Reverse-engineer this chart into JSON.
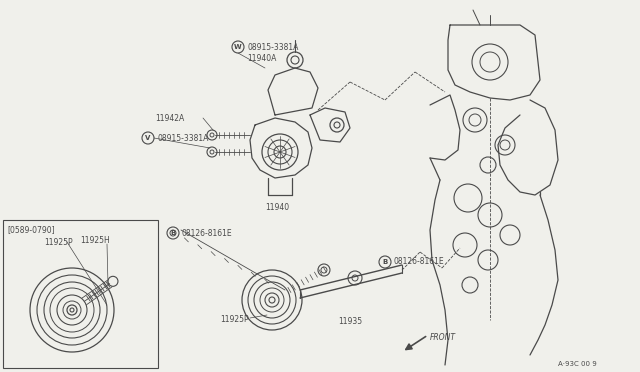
{
  "bg_color": "#f0f0eb",
  "line_color": "#4a4a4a",
  "lw_main": 0.9,
  "lw_thin": 0.5,
  "fontsize_label": 6.0,
  "fontsize_small": 5.0,
  "diagram_id": "A·93C 00 9",
  "labels": {
    "W_08915": "W)08915-3381A",
    "11940A": "11940A",
    "11942A": "11942A",
    "V_08915": "V)08915-3381A",
    "11940": "11940",
    "B_08126_top": "B)08126-8161E",
    "B_08126_bot": "B)08126-8161E",
    "11935": "11935",
    "11925P_main": "11925P",
    "11925P_inset": "11925P",
    "11925H": "11925H",
    "bracket": "[0589-0790]",
    "front": "FRONT"
  }
}
